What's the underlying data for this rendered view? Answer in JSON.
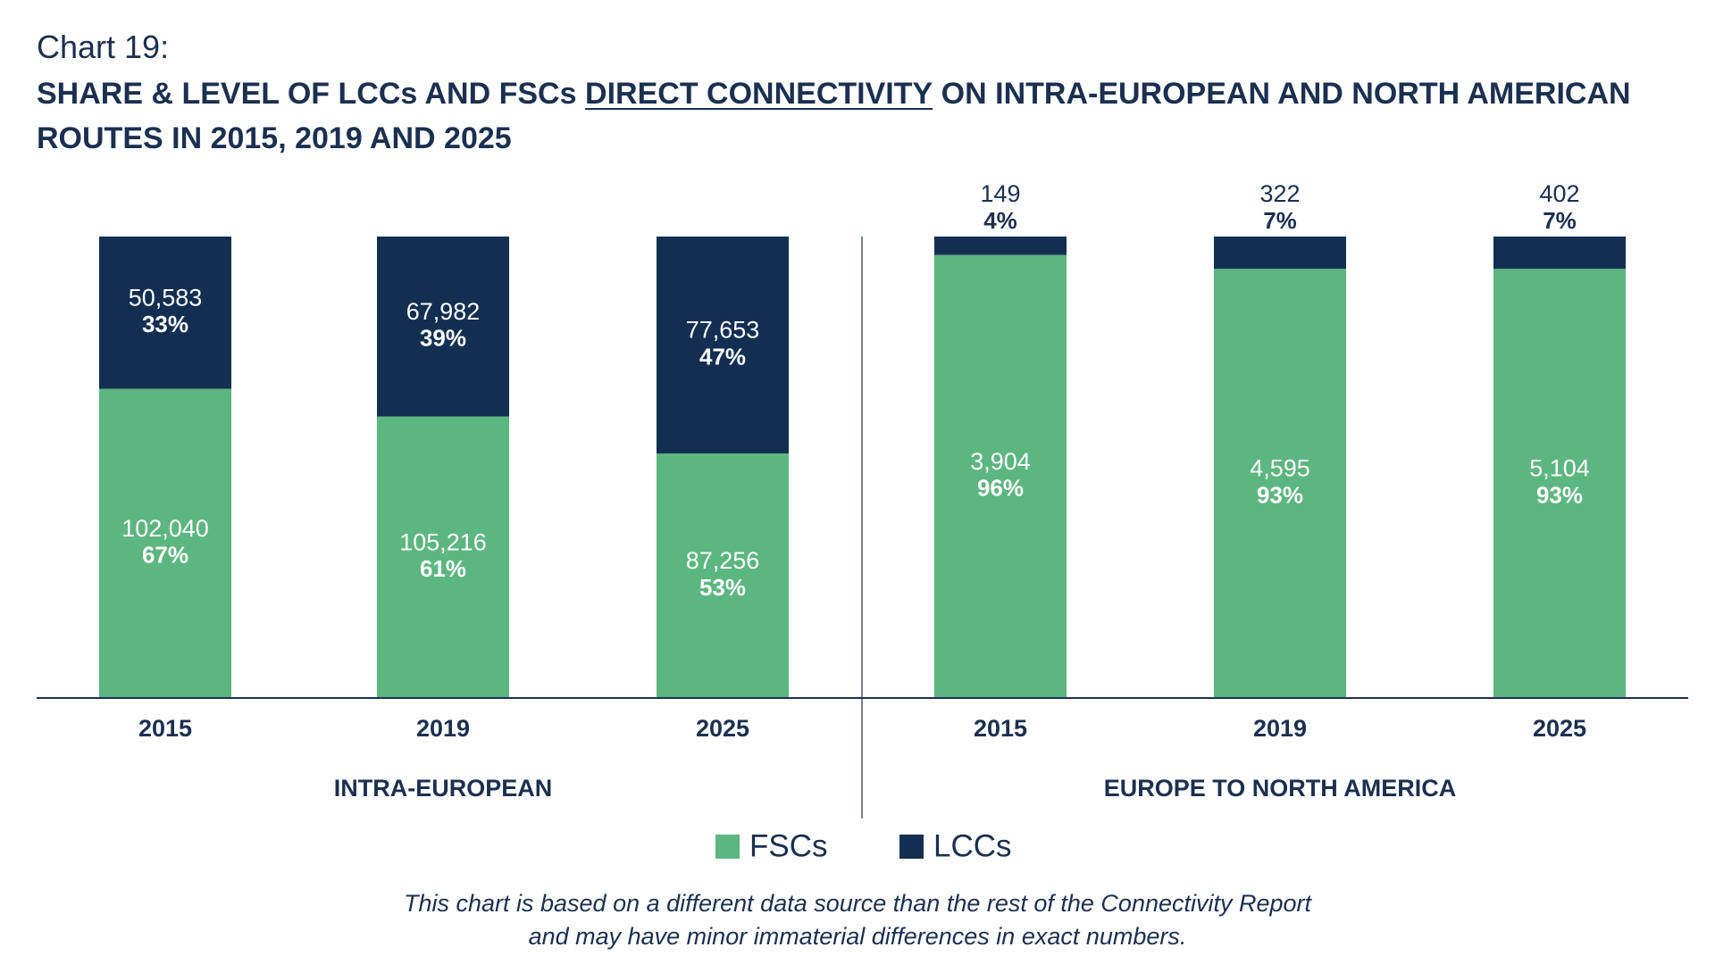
{
  "title_prefix": "Chart 19:",
  "title_parts": [
    "SHARE & LEVEL OF LCCs AND FSCs",
    "DIRECT CONNECTIVITY",
    "ON INTRA-EUROPEAN AND NORTH AMERICAN",
    "ROUTES IN 2015, 2019 AND 2025"
  ],
  "note": [
    "This chart is based on a different data source than the rest of the Connectivity Report",
    "and may have minor immaterial differences in exact numbers."
  ],
  "chart_data": {
    "type": "stacked_bar",
    "ylim": [
      0,
      100
    ],
    "categories": [
      "2015",
      "2019",
      "2025",
      "2015",
      "2019",
      "2025"
    ],
    "groups": [
      {
        "label": "INTRA-EUROPEAN",
        "categories": [
          "2015",
          "2019",
          "2025"
        ]
      },
      {
        "label": "EUROPE TO NORTH AMERICA",
        "categories": [
          "2015",
          "2019",
          "2025"
        ]
      }
    ],
    "series": [
      {
        "name": "FSCs",
        "color": "#5cb67f",
        "values": [
          67,
          61,
          53,
          96,
          93,
          93
        ],
        "value_labels": [
          "67%",
          "61%",
          "53%",
          "96%",
          "93%",
          "93%"
        ],
        "count_labels": [
          "102,040",
          "105,216",
          "87,256",
          "3,904",
          "4,595",
          "5,104"
        ]
      },
      {
        "name": "LCCs",
        "color": "#122f52",
        "values": [
          33,
          39,
          47,
          4,
          7,
          7
        ],
        "value_labels": [
          "33%",
          "39%",
          "47%",
          "4%",
          "7%",
          "7%"
        ],
        "count_labels": [
          "50,583",
          "67,982",
          "77,653",
          "149",
          "322",
          "402"
        ]
      }
    ]
  }
}
